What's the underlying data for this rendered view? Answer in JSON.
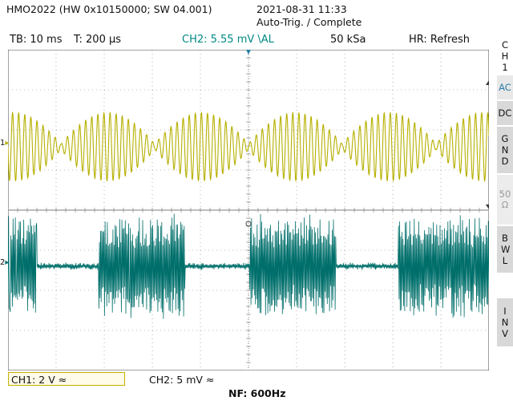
{
  "header": {
    "device": "HMO2022 (HW 0x10150000; SW 04.001)",
    "datetime": "2021-08-31 11:33",
    "trigger_status": "Auto-Trig. / Complete"
  },
  "status_bar": {
    "timebase": "TB: 10 ms",
    "trigger_time": "T: 200 µs",
    "ch2_info": "CH2: 5.55 mV \\AL",
    "sample_rate": "50 kSa",
    "hr_mode": "HR: Refresh"
  },
  "side_menu": {
    "channel_label": "CH 1",
    "ac": "AC",
    "dc": "DC",
    "gnd": "GND",
    "ohm": "50",
    "bwl": "BWL",
    "inv": "INV"
  },
  "channel_markers": {
    "ch1": "1",
    "ch2": "2"
  },
  "footer": {
    "ch1_scale": "CH1: 2 V ≈",
    "ch2_scale": "CH2: 5 mV ≈",
    "nf": "NF: 600Hz"
  },
  "colors": {
    "ch1": "#b6b000",
    "ch2": "#006f6b",
    "grid": "#7d7d7d",
    "trigger_marker": "#2b7fa0"
  },
  "screen_content": {
    "ch1_trace": "amplitude-modulated sine, envelope nulls at about 1.1, 3.1, 5.0 div",
    "ch2_trace": "noise bursts at about 0–0.6, 1.9–3.7, 5.0–6.8, 8.1–10 div"
  }
}
